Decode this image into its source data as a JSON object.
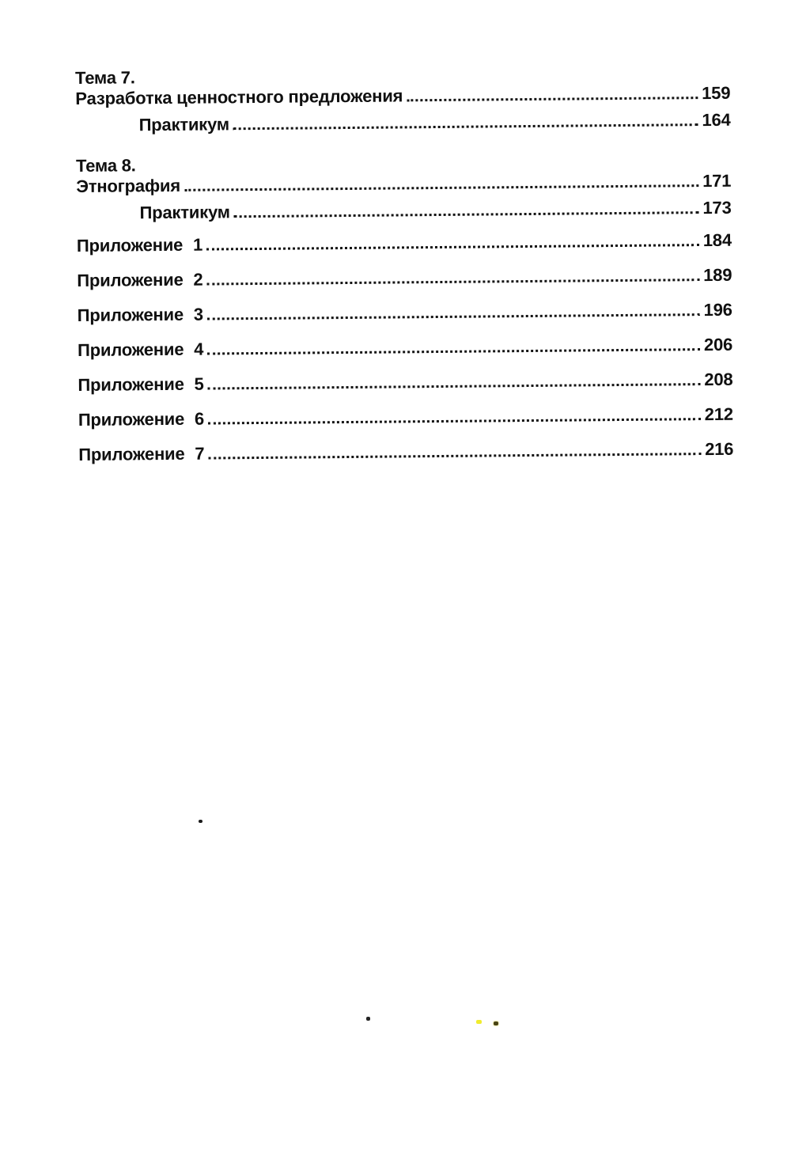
{
  "toc": {
    "sections": [
      {
        "heading": "Тема 7.",
        "title": "Разработка ценностного предложения",
        "page": "159",
        "sub_label": "Практикум",
        "sub_page": "164"
      },
      {
        "heading": "Тема 8.",
        "title": "Этнография",
        "page": "171",
        "sub_label": "Практикум",
        "sub_page": "173"
      }
    ],
    "appendices": [
      {
        "label": "Приложение 1",
        "page": "184"
      },
      {
        "label": "Приложение 2",
        "page": "189"
      },
      {
        "label": "Приложение 3",
        "page": "196"
      },
      {
        "label": "Приложение 4",
        "page": "206"
      },
      {
        "label": "Приложение 5",
        "page": "208"
      },
      {
        "label": "Приложение 6",
        "page": "212"
      },
      {
        "label": "Приложение 7",
        "page": "216"
      }
    ]
  },
  "colors": {
    "ink": "#101010",
    "paper": "#ffffff"
  }
}
